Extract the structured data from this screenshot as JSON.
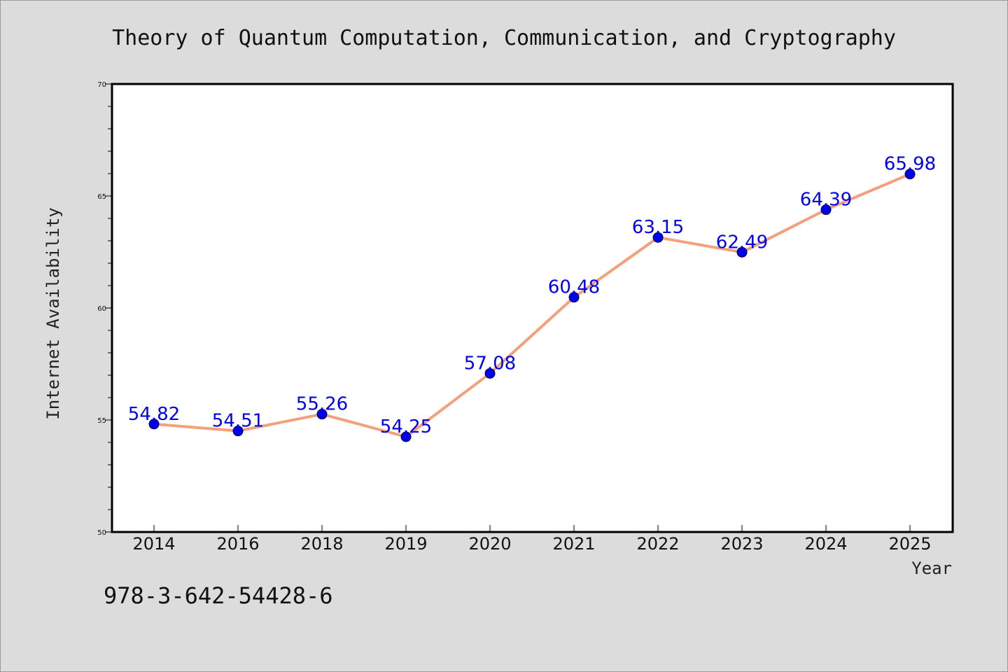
{
  "chart_data": {
    "type": "line",
    "title": "Theory of Quantum Computation, Communication, and Cryptography",
    "xlabel": "Year",
    "ylabel": "Internet Availability",
    "categories": [
      "2014",
      "2016",
      "2018",
      "2019",
      "2020",
      "2021",
      "2022",
      "2023",
      "2024",
      "2025"
    ],
    "values": [
      54.82,
      54.51,
      55.26,
      54.25,
      57.08,
      60.48,
      63.15,
      62.49,
      64.39,
      65.98
    ],
    "data_labels": [
      "54.82",
      "54.51",
      "55.26",
      "54.25",
      "57.08",
      "60.48",
      "63.15",
      "62.49",
      "64.39",
      "65.98"
    ],
    "ylim": [
      50,
      70
    ],
    "yticks": [
      "50",
      "55",
      "60",
      "65",
      "70"
    ],
    "grid": false,
    "legend": "none",
    "colors": {
      "line": "#f5a07a",
      "marker": "#0000ee",
      "label": "#0000ee"
    }
  },
  "footer": {
    "isbn": "978-3-642-54428-6"
  }
}
